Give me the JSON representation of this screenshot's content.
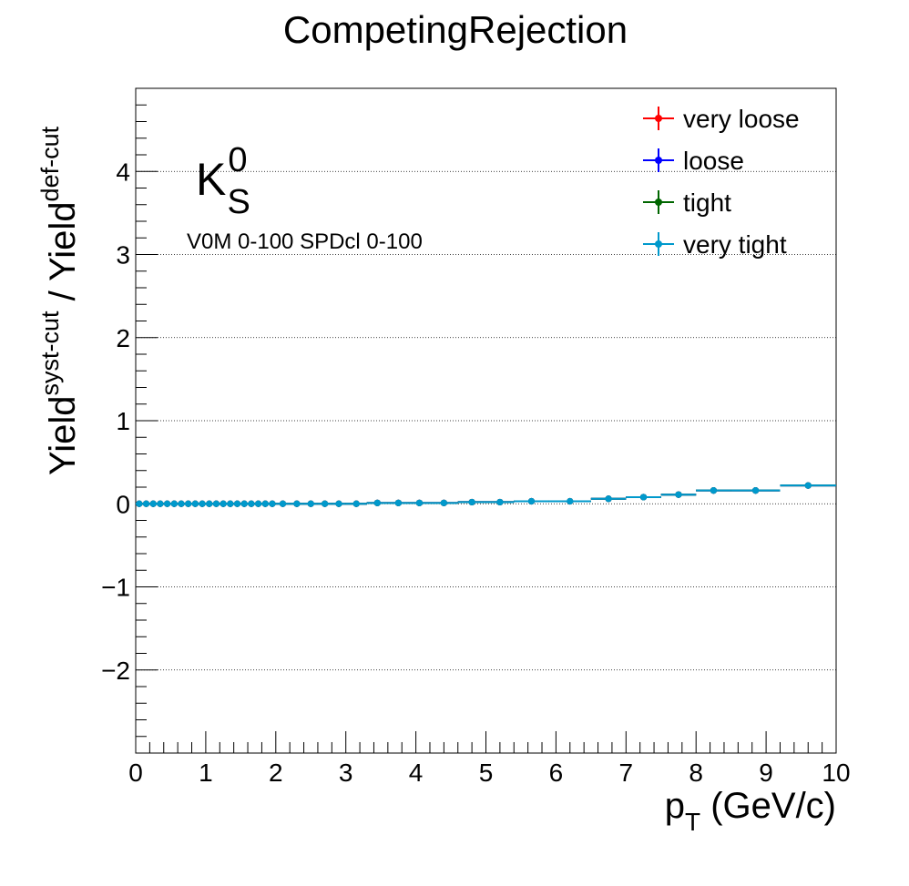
{
  "chart_data": {
    "type": "scatter",
    "title": "CompetingRejection",
    "xlabel": {
      "main": "p",
      "sub": "T",
      "tail": " (GeV/c)"
    },
    "ylabel": {
      "w1": "Yield",
      "sup1": "syst-cut",
      "mid": " / Yield",
      "sup2": "def-cut"
    },
    "xlim": [
      0,
      10
    ],
    "ylim": [
      -3,
      5
    ],
    "x_ticks": [
      0,
      1,
      2,
      3,
      4,
      5,
      6,
      7,
      8,
      9,
      10
    ],
    "y_ticks": [
      -2,
      -1,
      0,
      1,
      2,
      3,
      4
    ],
    "y_tick_labels": [
      "−2",
      "−1",
      "0",
      "1",
      "2",
      "3",
      "4"
    ],
    "grid": "y-dotted",
    "legend_position": "top-right",
    "particle": {
      "base": "K",
      "sup": "0",
      "sub": "S"
    },
    "annotation": "V0M 0-100 SPDcl 0-100",
    "bin_edges": [
      0,
      0.1,
      0.2,
      0.3,
      0.4,
      0.5,
      0.6,
      0.7,
      0.8,
      0.9,
      1.0,
      1.1,
      1.2,
      1.3,
      1.4,
      1.5,
      1.6,
      1.7,
      1.8,
      1.9,
      2.0,
      2.2,
      2.4,
      2.6,
      2.8,
      3.0,
      3.3,
      3.6,
      3.9,
      4.2,
      4.6,
      5.0,
      5.4,
      5.9,
      6.5,
      7.0,
      7.5,
      8.0,
      8.5,
      9.2,
      10.0
    ],
    "series": [
      {
        "name": "very loose",
        "color": "#ff0000",
        "values": [
          0,
          0,
          0,
          0,
          0,
          0,
          0,
          0,
          0,
          0,
          0,
          0,
          0,
          0,
          0,
          0,
          0,
          0,
          0,
          0,
          0,
          0,
          0,
          0,
          0,
          0,
          0.01,
          0.01,
          0.01,
          0.01,
          0.02,
          0.02,
          0.03,
          0.03,
          0.06,
          0.08,
          0.11,
          0.16,
          0.16,
          0.22
        ]
      },
      {
        "name": "loose",
        "color": "#0000ff",
        "values": [
          0,
          0,
          0,
          0,
          0,
          0,
          0,
          0,
          0,
          0,
          0,
          0,
          0,
          0,
          0,
          0,
          0,
          0,
          0,
          0,
          0,
          0,
          0,
          0,
          0,
          0,
          0.01,
          0.01,
          0.01,
          0.01,
          0.02,
          0.02,
          0.03,
          0.03,
          0.06,
          0.08,
          0.11,
          0.16,
          0.16,
          0.22
        ]
      },
      {
        "name": "tight",
        "color": "#006600",
        "values": [
          0,
          0,
          0,
          0,
          0,
          0,
          0,
          0,
          0,
          0,
          0,
          0,
          0,
          0,
          0,
          0,
          0,
          0,
          0,
          0,
          0,
          0,
          0,
          0,
          0,
          0,
          0.01,
          0.01,
          0.01,
          0.01,
          0.02,
          0.02,
          0.03,
          0.03,
          0.06,
          0.08,
          0.11,
          0.16,
          0.16,
          0.22
        ]
      },
      {
        "name": "very tight",
        "color": "#0099cc",
        "values": [
          0,
          0,
          0,
          0,
          0,
          0,
          0,
          0,
          0,
          0,
          0,
          0,
          0,
          0,
          0,
          0,
          0,
          0,
          0,
          0,
          0,
          0,
          0,
          0,
          0,
          0,
          0.01,
          0.01,
          0.01,
          0.01,
          0.02,
          0.02,
          0.03,
          0.03,
          0.06,
          0.08,
          0.11,
          0.16,
          0.16,
          0.22
        ]
      }
    ]
  }
}
